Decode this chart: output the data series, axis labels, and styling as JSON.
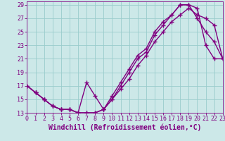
{
  "title": "",
  "xlabel": "Windchill (Refroidissement éolien,°C)",
  "ylabel": "",
  "bg_color": "#cce8e8",
  "line_color": "#800080",
  "grid_color": "#99cccc",
  "line1_x": [
    0,
    1,
    2,
    3,
    4,
    5,
    6,
    7,
    8,
    9,
    10,
    11,
    12,
    13,
    14,
    15,
    16,
    17,
    18,
    19,
    20,
    21,
    22,
    23
  ],
  "line1_y": [
    17.0,
    16.0,
    15.0,
    14.0,
    13.5,
    13.5,
    13.0,
    13.0,
    13.0,
    13.5,
    15.5,
    17.5,
    19.5,
    21.5,
    22.5,
    25.0,
    26.5,
    27.5,
    29.0,
    29.0,
    28.5,
    23.0,
    21.0,
    21.0
  ],
  "line2_x": [
    0,
    1,
    2,
    3,
    4,
    5,
    6,
    7,
    8,
    9,
    10,
    11,
    12,
    13,
    14,
    15,
    16,
    17,
    18,
    19,
    20,
    21,
    22,
    23
  ],
  "line2_y": [
    17.0,
    16.0,
    15.0,
    14.0,
    13.5,
    13.5,
    13.0,
    17.5,
    15.5,
    13.5,
    15.0,
    17.0,
    19.0,
    21.0,
    22.0,
    24.5,
    26.0,
    27.5,
    29.0,
    29.0,
    27.0,
    25.0,
    23.5,
    21.0
  ],
  "line3_x": [
    0,
    1,
    2,
    3,
    4,
    5,
    6,
    7,
    8,
    9,
    10,
    11,
    12,
    13,
    14,
    15,
    16,
    17,
    18,
    19,
    20,
    21,
    22,
    23
  ],
  "line3_y": [
    17.0,
    16.0,
    15.0,
    14.0,
    13.5,
    13.5,
    13.0,
    13.0,
    13.0,
    13.5,
    15.0,
    16.5,
    18.0,
    20.0,
    21.5,
    23.5,
    25.0,
    26.5,
    27.5,
    28.5,
    27.5,
    27.0,
    26.0,
    21.0
  ],
  "xlim": [
    0,
    23
  ],
  "ylim": [
    13,
    29.5
  ],
  "yticks": [
    13,
    15,
    17,
    19,
    21,
    23,
    25,
    27,
    29
  ],
  "xticks": [
    0,
    1,
    2,
    3,
    4,
    5,
    6,
    7,
    8,
    9,
    10,
    11,
    12,
    13,
    14,
    15,
    16,
    17,
    18,
    19,
    20,
    21,
    22,
    23
  ],
  "tick_fontsize": 6,
  "xlabel_fontsize": 7,
  "marker": "+",
  "markersize": 4,
  "linewidth": 1.0
}
